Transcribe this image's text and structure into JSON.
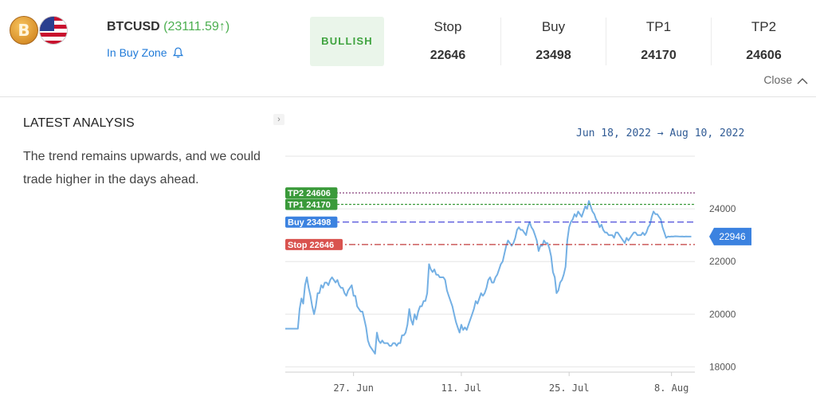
{
  "header": {
    "symbol": "BTCUSD",
    "price": "(23111.59↑)",
    "zone": "In Buy Zone",
    "btc_icon_glyph": "B",
    "sentiment": "BULLISH",
    "sentiment_color": "#3fa33f",
    "levels": [
      {
        "label": "Stop",
        "value": "22646"
      },
      {
        "label": "Buy",
        "value": "23498"
      },
      {
        "label": "TP1",
        "value": "24170"
      },
      {
        "label": "TP2",
        "value": "24606"
      }
    ],
    "close_label": "Close",
    "icons": [
      "bitcoin-icon",
      "us-flag-icon",
      "bell-icon",
      "chevron-up-icon",
      "expand-chevron-icon"
    ]
  },
  "analysis": {
    "title": "LATEST ANALYSIS",
    "text": "The trend remains upwards, and we could trade higher in the days ahead."
  },
  "chart_data": {
    "type": "line",
    "date_range": {
      "from": "Jun 18, 2022",
      "arrow": "→",
      "to": "Aug 10, 2022"
    },
    "x_ticks": [
      "27. Jun",
      "11. Jul",
      "25. Jul",
      "8. Aug"
    ],
    "y_ticks": [
      18000,
      20000,
      22000,
      24000
    ],
    "ylim": [
      17800,
      26000
    ],
    "current_value": {
      "label": "22946",
      "value": 22946,
      "color": "#3b82e0"
    },
    "levels": [
      {
        "label": "TP2 24606",
        "value": 24606,
        "color": "#7a2c6e",
        "tag_color": "#3a9a3a",
        "dash": "2,2"
      },
      {
        "label": "TP1 24170",
        "value": 24170,
        "color": "#3a9a3a",
        "tag_color": "#3a9a3a",
        "dash": "3,2"
      },
      {
        "label": "Buy 23498",
        "value": 23498,
        "color": "#3b3bd6",
        "tag_color": "#3b82e0",
        "dash": "8,4"
      },
      {
        "label": "Stop 22646",
        "value": 22646,
        "color": "#c23b3b",
        "tag_color": "#d9534f",
        "dash": "8,3,2,3"
      }
    ],
    "line_color": "#74b0e4",
    "x_index_range": [
      0,
      228
    ],
    "tick_indices": [
      38,
      98,
      158,
      215
    ],
    "series": [
      {
        "values": [
          19450,
          19450,
          19450,
          19450,
          19450,
          19450,
          19450,
          19450,
          20200,
          20600,
          20400,
          21100,
          21400,
          21000,
          20700,
          20300,
          20000,
          20300,
          20800,
          20800,
          21100,
          21000,
          21200,
          21200,
          21100,
          21300,
          21400,
          21300,
          21200,
          21300,
          21100,
          21000,
          21000,
          20800,
          20700,
          20900,
          21000,
          21100,
          20700,
          20700,
          20300,
          20200,
          20100,
          20100,
          19800,
          19500,
          19000,
          18800,
          18700,
          18600,
          18500,
          19300,
          19000,
          18900,
          19000,
          18900,
          18900,
          18900,
          18800,
          18800,
          18900,
          18900,
          18800,
          18900,
          18900,
          19200,
          19200,
          19300,
          19600,
          20200,
          19800,
          19600,
          20000,
          19800,
          20100,
          20300,
          20300,
          20500,
          20500,
          20800,
          21900,
          21700,
          21600,
          21700,
          21500,
          21500,
          21400,
          21400,
          21400,
          21300,
          20900,
          20700,
          20500,
          20300,
          20000,
          19700,
          19500,
          19300,
          19600,
          19400,
          19500,
          19400,
          19600,
          19800,
          20000,
          20200,
          20500,
          20400,
          20600,
          20800,
          20700,
          20800,
          21000,
          21300,
          21400,
          21200,
          21200,
          21400,
          21500,
          21700,
          21900,
          22000,
          22300,
          22600,
          22800,
          22700,
          22600,
          22700,
          22900,
          23200,
          23300,
          23200,
          23200,
          23100,
          23000,
          23300,
          23500,
          23300,
          23200,
          23000,
          22800,
          22400,
          22600,
          22600,
          22800,
          22700,
          22700,
          22500,
          22200,
          21600,
          21400,
          20800,
          20900,
          21200,
          21300,
          21500,
          21800,
          22800,
          23300,
          23500,
          23600,
          23800,
          23700,
          23900,
          23800,
          23700,
          23900,
          24100,
          24000,
          24300,
          24100,
          23900,
          23800,
          23600,
          23500,
          23300,
          23400,
          23200,
          23100,
          23100,
          23000,
          23000,
          23000,
          22900,
          23100,
          23100,
          23000,
          22900,
          22800,
          22700,
          22900,
          22800,
          22900,
          23000,
          23100,
          23100,
          23000,
          23000,
          23000,
          23100,
          23000,
          23100,
          23300,
          23400,
          23700,
          23900,
          23800,
          23800,
          23700,
          23600,
          23300,
          23100,
          22900,
          22950,
          22940,
          22950,
          22946,
          22960,
          22955,
          22950,
          22946,
          22950,
          22945,
          22950,
          22946,
          22946,
          22946
        ]
      }
    ]
  }
}
